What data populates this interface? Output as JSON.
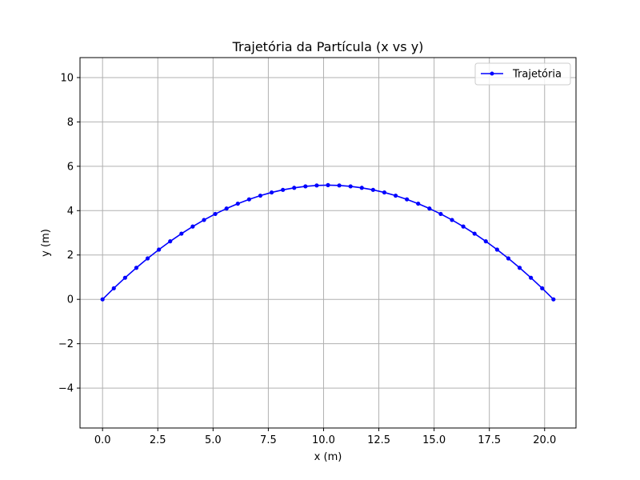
{
  "chart_data": {
    "type": "line",
    "title": "Trajetória da Partícula (x vs y)",
    "xlabel": "x (m)",
    "ylabel": "y (m)",
    "xlim": [
      -1.02,
      21.42
    ],
    "ylim": [
      -5.8,
      10.9
    ],
    "xticks": [
      0.0,
      2.5,
      5.0,
      7.5,
      10.0,
      12.5,
      15.0,
      17.5,
      20.0
    ],
    "xtick_labels": [
      "0.0",
      "2.5",
      "5.0",
      "7.5",
      "10.0",
      "12.5",
      "15.0",
      "17.5",
      "20.0"
    ],
    "yticks": [
      -4,
      -2,
      0,
      2,
      4,
      6,
      8,
      10
    ],
    "ytick_labels": [
      "−4",
      "−2",
      "0",
      "2",
      "4",
      "6",
      "8",
      "10"
    ],
    "grid": true,
    "legend_position": "upper right",
    "series": [
      {
        "name": "Trajetória",
        "color": "#0000ff",
        "marker": "circle",
        "x": [
          0.0,
          0.51,
          1.02,
          1.53,
          2.04,
          2.55,
          3.06,
          3.57,
          4.08,
          4.59,
          5.1,
          5.61,
          6.12,
          6.63,
          7.14,
          7.65,
          8.16,
          8.67,
          9.18,
          9.69,
          10.2,
          10.71,
          11.22,
          11.73,
          12.24,
          12.75,
          13.26,
          13.77,
          14.28,
          14.79,
          15.3,
          15.81,
          16.32,
          16.83,
          17.34,
          17.85,
          18.36,
          18.87,
          19.38,
          19.89,
          20.4
        ],
        "y": [
          0.0,
          0.4998,
          0.9741,
          1.4229,
          1.8462,
          2.244,
          2.6163,
          2.9631,
          3.2844,
          3.5802,
          3.8505,
          4.0953,
          4.3146,
          4.5084,
          4.6767,
          4.8195,
          4.9368,
          5.0286,
          5.0949,
          5.1357,
          5.151,
          5.1357,
          5.0949,
          5.0286,
          4.9368,
          4.8195,
          4.6767,
          4.5084,
          4.3146,
          4.0953,
          3.8505,
          3.5802,
          3.2844,
          2.9631,
          2.6163,
          2.244,
          1.8462,
          1.4229,
          0.9741,
          0.4998,
          0.0
        ]
      }
    ]
  }
}
